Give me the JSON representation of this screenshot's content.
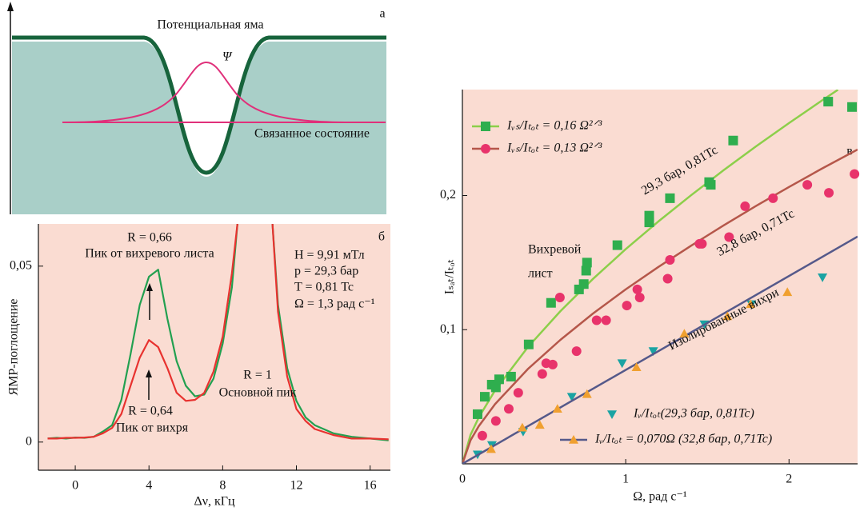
{
  "diagram": {
    "title": "Потенциальная яма",
    "label": "а",
    "psi": "Ψ",
    "state": "Связанное состояние"
  },
  "chart_data": [
    {
      "type": "line",
      "label": "б",
      "xlabel": "Δν, кГц",
      "ylabel": "ЯМР-поглощение",
      "x": [
        -1.5,
        -1,
        -0.5,
        0,
        0.5,
        1,
        1.5,
        2,
        2.5,
        3,
        3.5,
        4,
        4.5,
        5,
        5.5,
        6,
        6.5,
        7,
        7.5,
        8,
        8.5,
        8.8,
        9.5,
        10,
        10.7,
        11,
        11.5,
        12,
        12.5,
        13,
        14,
        15,
        16,
        17
      ],
      "series": [
        {
          "color": "#22a050",
          "values": [
            0.001,
            0.0012,
            0.001,
            0.0013,
            0.0012,
            0.0015,
            0.003,
            0.0048,
            0.012,
            0.025,
            0.039,
            0.047,
            0.049,
            0.035,
            0.023,
            0.016,
            0.013,
            0.0135,
            0.018,
            0.028,
            0.044,
            0.062,
            null,
            null,
            0.062,
            0.039,
            0.021,
            0.0117,
            0.007,
            0.0048,
            0.0025,
            0.0015,
            0.001,
            0.0005
          ]
        },
        {
          "color": "#e8322f",
          "values": [
            0.001,
            0.001,
            0.0012,
            0.0012,
            0.0013,
            0.0015,
            0.0025,
            0.004,
            0.008,
            0.016,
            0.024,
            0.029,
            0.027,
            0.021,
            0.014,
            0.0117,
            0.012,
            0.014,
            0.02,
            0.03,
            0.048,
            0.062,
            null,
            null,
            0.062,
            0.037,
            0.0186,
            0.0094,
            0.006,
            0.0037,
            0.002,
            0.001,
            0.001,
            0.0008
          ]
        }
      ],
      "xlim": [
        -2,
        17.1
      ],
      "ylim": [
        -0.008,
        0.062
      ],
      "xticks": [
        0,
        4,
        8,
        12,
        16
      ],
      "yticks": [
        0,
        {
          "value": 0.05,
          "label": "0,05"
        }
      ],
      "annotations": [
        "R = 0,66",
        "Пик от вихревого листа",
        "H = 9,91 мТл",
        "p = 29,3 бар",
        "T = 0,81 Tc",
        "Ω = 1,3 рад с⁻¹",
        "R = 1",
        "Основной пик",
        "R = 0,64",
        "Пик от вихря"
      ]
    },
    {
      "type": "scatter",
      "label": "в",
      "xlabel": "Ω, рад с⁻¹",
      "ylabel": "Iₛₐₜ/Iₜₒₜ",
      "xlim": [
        0,
        2.42
      ],
      "ylim": [
        0,
        0.279
      ],
      "xticks": [
        0,
        1,
        2
      ],
      "yticks": [
        {
          "value": 0.1,
          "label": "0,1"
        },
        {
          "value": 0.2,
          "label": "0,2"
        }
      ],
      "series": [
        {
          "name": "Iᵥₛ/Iₜₒₜ = 0,16 Ω²ᐟ³",
          "color": "#2fae4e",
          "marker": "square",
          "x": [
            0.093,
            0.137,
            0.18,
            0.205,
            0.225,
            0.298,
            0.406,
            0.543,
            0.714,
            0.743,
            0.758,
            0.763,
            0.949,
            1.144,
            1.144,
            1.271,
            1.511,
            1.521,
            1.658,
            2.24,
            2.386
          ],
          "values": [
            0.037,
            0.05,
            0.059,
            0.057,
            0.063,
            0.065,
            0.089,
            0.12,
            0.13,
            0.134,
            0.144,
            0.15,
            0.163,
            0.185,
            0.18,
            0.198,
            0.21,
            0.208,
            0.241,
            0.27,
            0.266
          ],
          "fit": {
            "color": "#8ccf4a",
            "x": [
              0,
              0.05,
              0.1,
              0.2,
              0.4,
              0.6,
              0.8,
              1,
              1.2,
              1.4,
              1.6,
              1.8,
              2,
              2.2,
              2.3
            ],
            "values": [
              0,
              0.0217,
              0.0345,
              0.0547,
              0.0869,
              0.1138,
              0.1379,
              0.16,
              0.1807,
              0.2002,
              0.2189,
              0.2368,
              0.254,
              0.2707,
              0.2789
            ]
          }
        },
        {
          "name": "Iᵥₛ/Iₜₒₜ = 0,13 Ω²ᐟ³",
          "color": "#e8336b",
          "marker": "circle",
          "x": [
            0.122,
            0.205,
            0.284,
            0.342,
            0.489,
            0.513,
            0.553,
            0.699,
            0.597,
            0.822,
            0.88,
            1.007,
            1.071,
            1.086,
            1.257,
            1.271,
            1.452,
            1.467,
            1.633,
            1.731,
            1.902,
            2.112,
            2.244,
            2.401
          ],
          "values": [
            0.021,
            0.032,
            0.041,
            0.053,
            0.067,
            0.075,
            0.074,
            0.084,
            0.124,
            0.107,
            0.107,
            0.118,
            0.13,
            0.124,
            0.138,
            0.152,
            0.164,
            0.164,
            0.169,
            0.192,
            0.198,
            0.208,
            0.202,
            0.216
          ],
          "fit": {
            "color": "#b5574a",
            "x": [
              0,
              0.05,
              0.1,
              0.2,
              0.4,
              0.6,
              0.8,
              1,
              1.2,
              1.4,
              1.6,
              1.8,
              2,
              2.2,
              2.42
            ],
            "values": [
              0,
              0.0176,
              0.028,
              0.0445,
              0.0706,
              0.0924,
              0.1121,
              0.13,
              0.1468,
              0.1626,
              0.1778,
              0.1924,
              0.2064,
              0.22,
              0.2343
            ]
          }
        },
        {
          "name": "Iᵥ/Iₜₒₜ(29,3 бар, 0,81Tc)",
          "color": "#1aa3a3",
          "marker": "triangle-down",
          "x": [
            0.093,
            0.181,
            0.372,
            0.67,
            0.978,
            1.169,
            1.482,
            1.77,
            2.205
          ],
          "values": [
            0.007,
            0.014,
            0.024,
            0.05,
            0.075,
            0.084,
            0.104,
            0.119,
            0.139
          ]
        },
        {
          "name": "Iᵥ/Iₜₒₜ = 0,070Ω (32,8 бар, 0,71Tc)",
          "color": "#f0a030",
          "marker": "triangle-up",
          "label_color": "#f0a030",
          "x": [
            0.176,
            0.367,
            0.474,
            0.582,
            0.763,
            1.066,
            1.359,
            1.623,
            1.765,
            1.99
          ],
          "values": [
            0.011,
            0.027,
            0.029,
            0.041,
            0.052,
            0.072,
            0.097,
            0.11,
            0.119,
            0.128
          ],
          "fit": {
            "color": "#55598a",
            "x": [
              0,
              2.42
            ],
            "values": [
              0,
              0.1694
            ]
          }
        }
      ],
      "annotations": [
        "29,3 бар, 0,81Tc",
        "32,8 бар, 0,71Tc",
        "Вихревой",
        "лист",
        "Изолированные вихри"
      ]
    }
  ]
}
